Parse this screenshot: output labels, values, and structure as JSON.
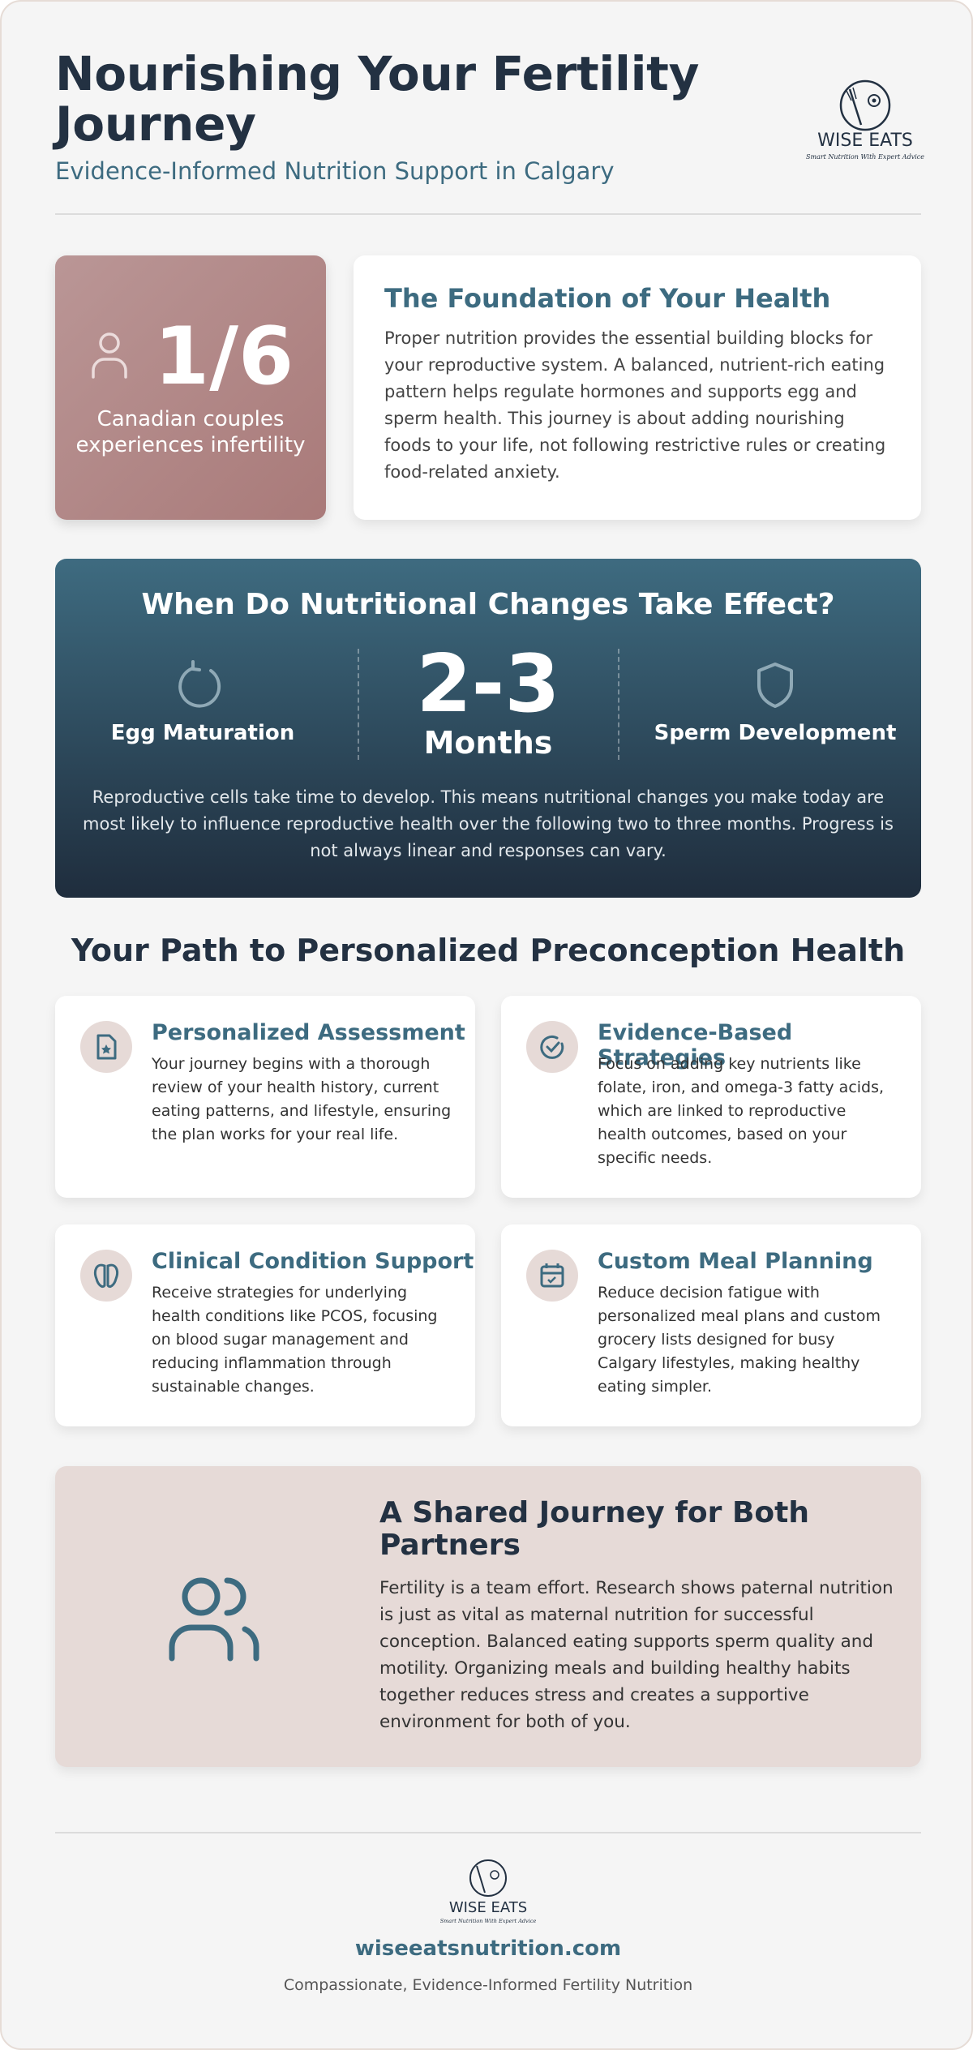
{
  "header": {
    "title": "Nourishing Your Fertility Journey",
    "subtitle": "Evidence-Informed Nutrition Support in Calgary"
  },
  "logo": {
    "name": "WISE EATS",
    "tagline": "Smart Nutrition With Expert Advice"
  },
  "stat": {
    "value": "1/6",
    "label": "Canadian couples experiences infertility"
  },
  "foundation": {
    "title": "The Foundation of Your Health",
    "body": "Proper nutrition provides the essential building blocks for your reproductive system. A balanced, nutrient-rich eating pattern helps regulate hormones and supports egg and sperm health. This journey is about adding nourishing foods to your life, not following restrictive rules or creating food-related anxiety."
  },
  "timing": {
    "title": "When Do Nutritional Changes Take Effect?",
    "left": "Egg Maturation",
    "value": "2-3",
    "unit": "Months",
    "right": "Sperm Development",
    "body": "Reproductive cells take time to develop. This means nutritional changes you make today are most likely to influence reproductive health over the following two to three months. Progress is not always linear and responses can vary."
  },
  "path": {
    "title": "Your Path to Personalized Preconception Health",
    "cards": [
      {
        "title": "Personalized Assessment",
        "body": "Your journey begins with a thorough review of your health history, current eating patterns, and lifestyle, ensuring the plan works for your real life."
      },
      {
        "title": "Evidence-Based Strategies",
        "body": "Focus on adding key nutrients like folate, iron, and omega-3 fatty acids, which are linked to reproductive health outcomes, based on your specific needs."
      },
      {
        "title": "Clinical Condition Support",
        "body": "Receive strategies for underlying health conditions like PCOS, focusing on blood sugar management and reducing inflammation through sustainable changes."
      },
      {
        "title": "Custom Meal Planning",
        "body": "Reduce decision fatigue with personalized meal plans and custom grocery lists designed for busy Calgary lifestyles, making healthy eating simpler."
      }
    ]
  },
  "partners": {
    "title": "A Shared Journey for Both Partners",
    "body": "Fertility is a team effort. Research shows paternal nutrition is just as vital as maternal nutrition for successful conception. Balanced eating supports sperm quality and motility. Organizing meals and building healthy habits together reduces stress and creates a supportive environment for both of you."
  },
  "footer": {
    "url": "wiseeatsnutrition.com",
    "tagline": "Compassionate, Evidence-Informed Fertility Nutrition"
  }
}
